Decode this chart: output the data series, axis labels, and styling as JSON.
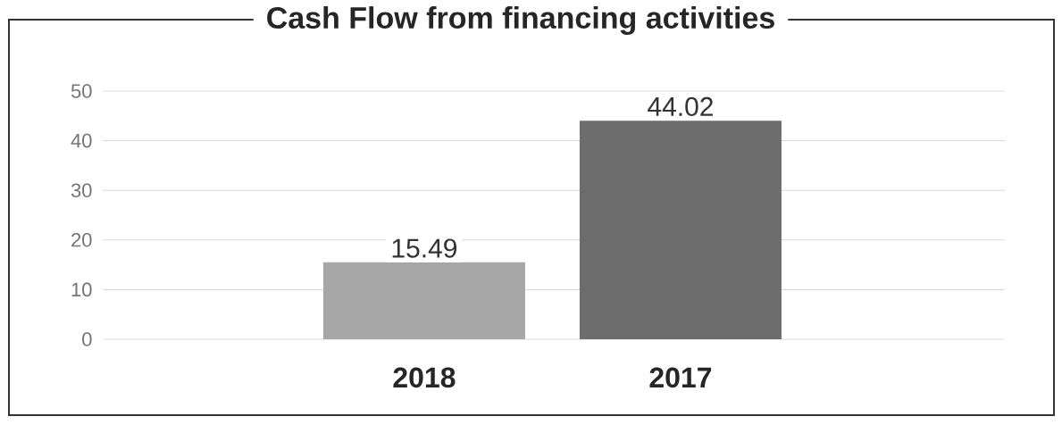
{
  "chart_data": {
    "type": "bar",
    "title": "Cash Flow from financing activities",
    "categories": [
      "2018",
      "2017"
    ],
    "values": [
      15.49,
      44.02
    ],
    "colors": [
      "#a6a6a6",
      "#6d6d6d"
    ],
    "ylim": [
      0,
      50
    ],
    "yticks": [
      0,
      10,
      20,
      30,
      40,
      50
    ],
    "grid": "y",
    "data_labels": true
  }
}
